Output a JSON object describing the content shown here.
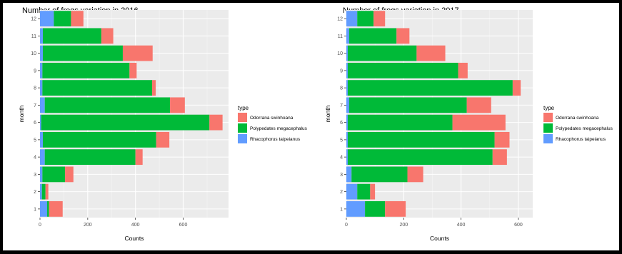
{
  "colors": {
    "Odorrana swinhoana": "#F8766D",
    "Polypedates megacephalus": "#00BA38",
    "Rhacophorus taipeianus": "#619CFF"
  },
  "chart_data": [
    {
      "type": "bar",
      "orientation": "horizontal",
      "stacked": true,
      "title": "Number of frogs variation in 2016",
      "xlabel": "Counts",
      "ylabel": "month",
      "xlim": [
        0,
        790
      ],
      "xticks": [
        0,
        200,
        400,
        600
      ],
      "grid": true,
      "legend_title": "type",
      "legend_position": "right",
      "categories": [
        "1",
        "2",
        "3",
        "4",
        "5",
        "6",
        "7",
        "8",
        "9",
        "10",
        "11",
        "12"
      ],
      "series": [
        {
          "name": "Rhacophorus taipeianus",
          "values": [
            30,
            8,
            10,
            20,
            12,
            5,
            20,
            10,
            10,
            12,
            12,
            58
          ]
        },
        {
          "name": "Polypedates megacephalus",
          "values": [
            8,
            15,
            95,
            380,
            475,
            705,
            525,
            460,
            365,
            335,
            245,
            72
          ]
        },
        {
          "name": "Odorrana swinhoana",
          "values": [
            57,
            12,
            35,
            30,
            55,
            55,
            62,
            15,
            30,
            125,
            50,
            52
          ]
        }
      ]
    },
    {
      "type": "bar",
      "orientation": "horizontal",
      "stacked": true,
      "title": "Number of frogs variation in 2017",
      "xlabel": "Counts",
      "ylabel": "month",
      "xlim": [
        0,
        650
      ],
      "xticks": [
        0,
        200,
        400,
        600
      ],
      "grid": true,
      "legend_title": "type",
      "legend_position": "right",
      "categories": [
        "1",
        "2",
        "3",
        "4",
        "5",
        "6",
        "7",
        "8",
        "9",
        "10",
        "11",
        "12"
      ],
      "series": [
        {
          "name": "Rhacophorus taipeianus",
          "values": [
            65,
            38,
            18,
            5,
            5,
            5,
            10,
            5,
            5,
            5,
            10,
            38
          ]
        },
        {
          "name": "Polypedates megacephalus",
          "values": [
            70,
            45,
            195,
            505,
            512,
            365,
            410,
            575,
            385,
            240,
            165,
            57
          ]
        },
        {
          "name": "Odorrana swinhoana",
          "values": [
            72,
            17,
            55,
            50,
            52,
            185,
            85,
            28,
            33,
            100,
            45,
            40
          ]
        }
      ]
    }
  ]
}
